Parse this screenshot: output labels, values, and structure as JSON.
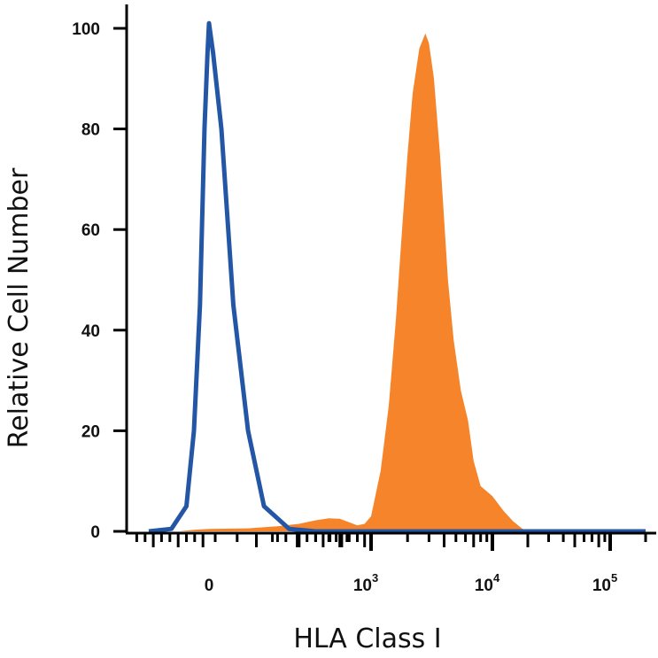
{
  "chart_data": {
    "type": "area",
    "title": "",
    "xlabel": "HLA Class I",
    "ylabel": "Relative Cell Number",
    "x_scale": "biexponential",
    "ylim": [
      0,
      100
    ],
    "y_ticks": [
      "0",
      "20",
      "40",
      "60",
      "80",
      "100"
    ],
    "x_ticks": [
      {
        "base": "0",
        "exp": "",
        "value": 0
      },
      {
        "base": "10",
        "exp": "3",
        "value": 1000
      },
      {
        "base": "10",
        "exp": "4",
        "value": 10000
      },
      {
        "base": "10",
        "exp": "5",
        "value": 100000
      }
    ],
    "grid": false,
    "legend": "none",
    "series": [
      {
        "style": "filled",
        "color": "#f5842a",
        "points": [
          [
            -200,
            0
          ],
          [
            -100,
            0.3
          ],
          [
            0,
            0.5
          ],
          [
            100,
            0.6
          ],
          [
            200,
            1
          ],
          [
            300,
            1.5
          ],
          [
            400,
            2.2
          ],
          [
            500,
            2.6
          ],
          [
            600,
            2.5
          ],
          [
            700,
            1.8
          ],
          [
            800,
            1.2
          ],
          [
            900,
            1.5
          ],
          [
            1000,
            3
          ],
          [
            1200,
            12
          ],
          [
            1400,
            25
          ],
          [
            1600,
            42
          ],
          [
            1800,
            60
          ],
          [
            2000,
            75
          ],
          [
            2200,
            87
          ],
          [
            2500,
            96
          ],
          [
            2800,
            99
          ],
          [
            3000,
            97
          ],
          [
            3300,
            90
          ],
          [
            3700,
            75
          ],
          [
            4000,
            62
          ],
          [
            4300,
            50
          ],
          [
            4800,
            38
          ],
          [
            5500,
            28
          ],
          [
            6300,
            22
          ],
          [
            7000,
            14
          ],
          [
            8000,
            9
          ],
          [
            10000,
            7
          ],
          [
            12500,
            4
          ],
          [
            15000,
            2
          ],
          [
            18000,
            0.5
          ],
          [
            22000,
            0
          ]
        ]
      },
      {
        "style": "line",
        "color": "#2456a6",
        "points": [
          [
            -400,
            0
          ],
          [
            -250,
            0.5
          ],
          [
            -150,
            5
          ],
          [
            -100,
            20
          ],
          [
            -60,
            45
          ],
          [
            -30,
            80
          ],
          [
            -10,
            95
          ],
          [
            0,
            101
          ],
          [
            10,
            95
          ],
          [
            30,
            80
          ],
          [
            60,
            45
          ],
          [
            100,
            20
          ],
          [
            150,
            5
          ],
          [
            250,
            0.5
          ],
          [
            400,
            0
          ],
          [
            100000,
            0
          ],
          [
            200000,
            0
          ]
        ]
      }
    ]
  }
}
